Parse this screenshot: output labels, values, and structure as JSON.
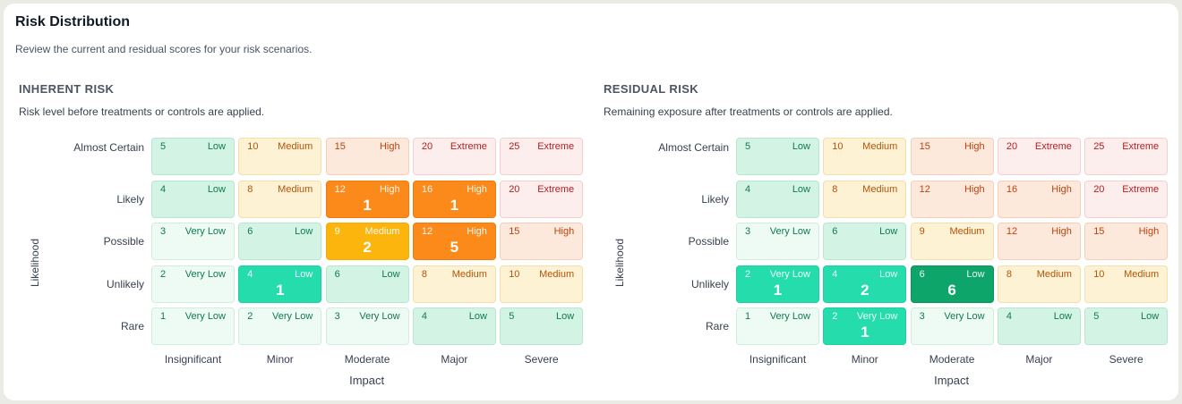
{
  "title": "Risk Distribution",
  "subtitle": "Review the current and residual scores for your risk scenarios.",
  "axis": {
    "x": "Impact",
    "y": "Likelihood"
  },
  "rows": [
    "Almost Certain",
    "Likely",
    "Possible",
    "Unlikely",
    "Rare"
  ],
  "cols": [
    "Insignificant",
    "Minor",
    "Moderate",
    "Major",
    "Severe"
  ],
  "matrices": [
    {
      "title": "INHERENT RISK",
      "description": "Risk level before treatments or controls are applied.",
      "cells": [
        [
          {
            "score": "5",
            "level": "Low",
            "style": "low",
            "count": ""
          },
          {
            "score": "10",
            "level": "Medium",
            "style": "med",
            "count": ""
          },
          {
            "score": "15",
            "level": "High",
            "style": "high",
            "count": ""
          },
          {
            "score": "20",
            "level": "Extreme",
            "style": "ext",
            "count": ""
          },
          {
            "score": "25",
            "level": "Extreme",
            "style": "ext",
            "count": ""
          }
        ],
        [
          {
            "score": "4",
            "level": "Low",
            "style": "low",
            "count": ""
          },
          {
            "score": "8",
            "level": "Medium",
            "style": "med",
            "count": ""
          },
          {
            "score": "12",
            "level": "High",
            "style": "orange",
            "count": "1"
          },
          {
            "score": "16",
            "level": "High",
            "style": "orange",
            "count": "1"
          },
          {
            "score": "20",
            "level": "Extreme",
            "style": "ext",
            "count": ""
          }
        ],
        [
          {
            "score": "3",
            "level": "Very Low",
            "style": "vlow",
            "count": ""
          },
          {
            "score": "6",
            "level": "Low",
            "style": "low",
            "count": ""
          },
          {
            "score": "9",
            "level": "Medium",
            "style": "amber",
            "count": "2"
          },
          {
            "score": "12",
            "level": "High",
            "style": "orange",
            "count": "5"
          },
          {
            "score": "15",
            "level": "High",
            "style": "high",
            "count": ""
          }
        ],
        [
          {
            "score": "2",
            "level": "Very Low",
            "style": "vlow",
            "count": ""
          },
          {
            "score": "4",
            "level": "Low",
            "style": "teal",
            "count": "1"
          },
          {
            "score": "6",
            "level": "Low",
            "style": "low",
            "count": ""
          },
          {
            "score": "8",
            "level": "Medium",
            "style": "med",
            "count": ""
          },
          {
            "score": "10",
            "level": "Medium",
            "style": "med",
            "count": ""
          }
        ],
        [
          {
            "score": "1",
            "level": "Very Low",
            "style": "vlow",
            "count": ""
          },
          {
            "score": "2",
            "level": "Very Low",
            "style": "vlow",
            "count": ""
          },
          {
            "score": "3",
            "level": "Very Low",
            "style": "vlow",
            "count": ""
          },
          {
            "score": "4",
            "level": "Low",
            "style": "low",
            "count": ""
          },
          {
            "score": "5",
            "level": "Low",
            "style": "low",
            "count": ""
          }
        ]
      ]
    },
    {
      "title": "RESIDUAL RISK",
      "description": "Remaining exposure after treatments or controls are applied.",
      "cells": [
        [
          {
            "score": "5",
            "level": "Low",
            "style": "low",
            "count": ""
          },
          {
            "score": "10",
            "level": "Medium",
            "style": "med",
            "count": ""
          },
          {
            "score": "15",
            "level": "High",
            "style": "high",
            "count": ""
          },
          {
            "score": "20",
            "level": "Extreme",
            "style": "ext",
            "count": ""
          },
          {
            "score": "25",
            "level": "Extreme",
            "style": "ext",
            "count": ""
          }
        ],
        [
          {
            "score": "4",
            "level": "Low",
            "style": "low",
            "count": ""
          },
          {
            "score": "8",
            "level": "Medium",
            "style": "med",
            "count": ""
          },
          {
            "score": "12",
            "level": "High",
            "style": "high",
            "count": ""
          },
          {
            "score": "16",
            "level": "High",
            "style": "high",
            "count": ""
          },
          {
            "score": "20",
            "level": "Extreme",
            "style": "ext",
            "count": ""
          }
        ],
        [
          {
            "score": "3",
            "level": "Very Low",
            "style": "vlow",
            "count": ""
          },
          {
            "score": "6",
            "level": "Low",
            "style": "low",
            "count": ""
          },
          {
            "score": "9",
            "level": "Medium",
            "style": "med",
            "count": ""
          },
          {
            "score": "12",
            "level": "High",
            "style": "high",
            "count": ""
          },
          {
            "score": "15",
            "level": "High",
            "style": "high",
            "count": ""
          }
        ],
        [
          {
            "score": "2",
            "level": "Very Low",
            "style": "teal",
            "count": "1"
          },
          {
            "score": "4",
            "level": "Low",
            "style": "teal",
            "count": "2"
          },
          {
            "score": "6",
            "level": "Low",
            "style": "green",
            "count": "6"
          },
          {
            "score": "8",
            "level": "Medium",
            "style": "med",
            "count": ""
          },
          {
            "score": "10",
            "level": "Medium",
            "style": "med",
            "count": ""
          }
        ],
        [
          {
            "score": "1",
            "level": "Very Low",
            "style": "vlow",
            "count": ""
          },
          {
            "score": "2",
            "level": "Very Low",
            "style": "teal",
            "count": "1"
          },
          {
            "score": "3",
            "level": "Very Low",
            "style": "vlow",
            "count": ""
          },
          {
            "score": "4",
            "level": "Low",
            "style": "low",
            "count": ""
          },
          {
            "score": "5",
            "level": "Low",
            "style": "low",
            "count": ""
          }
        ]
      ]
    }
  ]
}
